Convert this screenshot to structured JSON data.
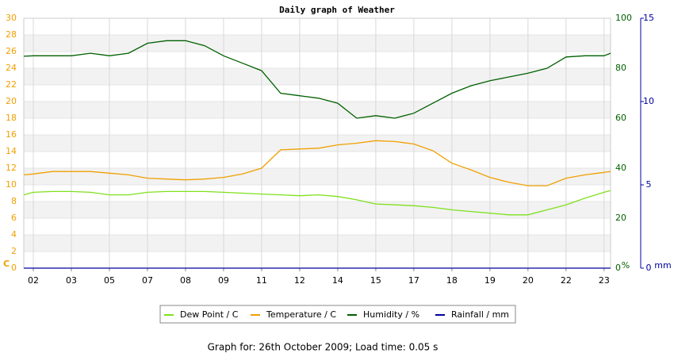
{
  "chart_data": {
    "type": "line",
    "title": "Daily graph of Weather",
    "footer": "Graph for: 26th October 2009; Load time: 0.05 s",
    "y_label": "C",
    "y2_label": "%",
    "y3_label": "mm",
    "x": [
      -0.25,
      0,
      0.5,
      1,
      1.5,
      2,
      2.5,
      3,
      3.5,
      4,
      4.5,
      5,
      5.5,
      6,
      6.5,
      7,
      7.5,
      8,
      8.5,
      9,
      9.5,
      10,
      10.5,
      11,
      11.5,
      12,
      12.5,
      13,
      13.5,
      14,
      14.5,
      15,
      15.17
    ],
    "xlim": [
      -0.25,
      15.17
    ],
    "xticks": [
      {
        "value": 0,
        "label": "02"
      },
      {
        "value": 1,
        "label": "03"
      },
      {
        "value": 2,
        "label": "05"
      },
      {
        "value": 3,
        "label": "07"
      },
      {
        "value": 4,
        "label": "08"
      },
      {
        "value": 5,
        "label": "09"
      },
      {
        "value": 6,
        "label": "11"
      },
      {
        "value": 7,
        "label": "12"
      },
      {
        "value": 8,
        "label": "14"
      },
      {
        "value": 9,
        "label": "15"
      },
      {
        "value": 10,
        "label": "17"
      },
      {
        "value": 11,
        "label": "18"
      },
      {
        "value": 12,
        "label": "19"
      },
      {
        "value": 13,
        "label": "20"
      },
      {
        "value": 14,
        "label": "22"
      },
      {
        "value": 15,
        "label": "23"
      }
    ],
    "ylim": [
      0,
      30
    ],
    "yticks": [
      0,
      2,
      4,
      6,
      8,
      10,
      12,
      14,
      16,
      18,
      20,
      22,
      24,
      26,
      28,
      30
    ],
    "y2lim": [
      0,
      100
    ],
    "y2ticks": [
      0,
      20,
      40,
      60,
      80,
      100
    ],
    "y3lim": [
      0,
      15
    ],
    "y3ticks": [
      0,
      5,
      10,
      15
    ],
    "grid": true,
    "legend": "bottom",
    "series": [
      {
        "name": "Dew Point / C",
        "color": "#7fe01e",
        "axis": "y",
        "values": [
          8.8,
          9.1,
          9.2,
          9.2,
          9.1,
          8.8,
          8.8,
          9.1,
          9.2,
          9.2,
          9.2,
          9.1,
          9.0,
          8.9,
          8.8,
          8.7,
          8.8,
          8.6,
          8.2,
          7.7,
          7.6,
          7.5,
          7.3,
          7.0,
          6.8,
          6.6,
          6.4,
          6.4,
          7.0,
          7.6,
          8.4,
          9.1,
          9.3
        ]
      },
      {
        "name": "Temperature / C",
        "color": "#f0a000",
        "axis": "y",
        "values": [
          11.2,
          11.3,
          11.6,
          11.6,
          11.6,
          11.4,
          11.2,
          10.8,
          10.7,
          10.6,
          10.7,
          10.9,
          11.3,
          12.0,
          14.2,
          14.3,
          14.4,
          14.8,
          15.0,
          15.3,
          15.2,
          14.9,
          14.1,
          12.6,
          11.8,
          10.9,
          10.3,
          9.9,
          9.9,
          10.8,
          11.2,
          11.5,
          11.6
        ]
      },
      {
        "name": "Humidity / %",
        "color": "#006000",
        "axis": "y2",
        "values": [
          84.8,
          85,
          85,
          85,
          86,
          85,
          86,
          90,
          91,
          91,
          89,
          85,
          82,
          79,
          70,
          69,
          68,
          66,
          60,
          61,
          60,
          62,
          66,
          70,
          73,
          75,
          76.5,
          78,
          80,
          84.5,
          85,
          85,
          86
        ]
      },
      {
        "name": "Rainfall / mm",
        "color": "#0000a0",
        "axis": "y3",
        "values": [
          0,
          0,
          0,
          0,
          0,
          0,
          0,
          0,
          0,
          0,
          0,
          0,
          0,
          0,
          0,
          0,
          0,
          0,
          0,
          0,
          0,
          0,
          0,
          0,
          0,
          0,
          0,
          0,
          0,
          0,
          0,
          0,
          0
        ]
      }
    ]
  }
}
